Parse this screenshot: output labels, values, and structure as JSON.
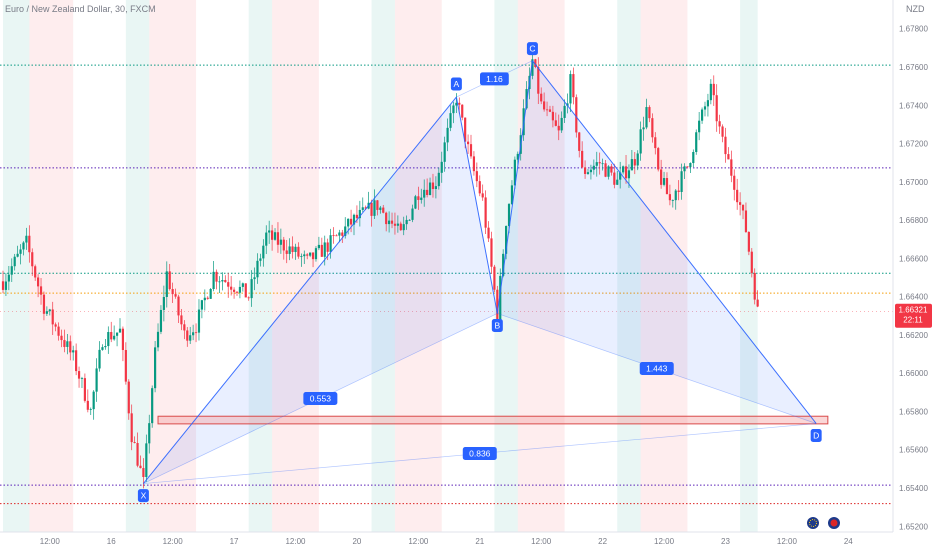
{
  "header": {
    "title": "Euro / New Zealand Dollar, 30, FXCM",
    "currency": "NZD"
  },
  "chart_data": {
    "type": "candlestick",
    "symbol": "EURNZD",
    "timeframe": "30",
    "source": "FXCM",
    "x_ticks": [
      "12:00",
      "16",
      "12:00",
      "17",
      "12:00",
      "20",
      "12:00",
      "21",
      "12:00",
      "22",
      "12:00",
      "23",
      "12:00",
      "24"
    ],
    "y_ticks": [
      "1.67800",
      "1.67600",
      "1.67400",
      "1.67200",
      "1.67000",
      "1.66800",
      "1.66600",
      "1.66400",
      "1.66200",
      "1.66000",
      "1.65800",
      "1.65600",
      "1.65400",
      "1.65200"
    ],
    "y_tick_values": [
      1.678,
      1.676,
      1.674,
      1.672,
      1.67,
      1.668,
      1.666,
      1.664,
      1.662,
      1.66,
      1.658,
      1.656,
      1.654,
      1.652
    ],
    "ylim": [
      1.6517,
      1.6795
    ],
    "x_range": [
      0,
      155
    ],
    "last_price": "1.66321",
    "last_price_value": 1.66321,
    "countdown": "22:11",
    "pattern": {
      "name": "bat",
      "points": [
        {
          "label": "X",
          "t": 24,
          "price": 1.65423
        },
        {
          "label": "A",
          "t": 77.5,
          "price": 1.67443
        },
        {
          "label": "B",
          "t": 84.5,
          "price": 1.66312
        },
        {
          "label": "C",
          "t": 90.5,
          "price": 1.67633
        },
        {
          "label": "D",
          "t": 139,
          "price": 1.65737
        }
      ],
      "ratios": [
        {
          "label": "0.553",
          "between": "X-B"
        },
        {
          "label": "1.16",
          "between": "A-C"
        },
        {
          "label": "1.443",
          "between": "B-D"
        },
        {
          "label": "0.836",
          "between": "X-D"
        }
      ]
    },
    "horizontal_levels": [
      {
        "price": 1.6761,
        "style": "dotted",
        "color": "#089981"
      },
      {
        "price": 1.67073,
        "style": "dotted",
        "color": "#5b21b6"
      },
      {
        "price": 1.66522,
        "style": "dotted",
        "color": "#089981"
      },
      {
        "price": 1.66418,
        "style": "dotted",
        "color": "#f59e0b"
      },
      {
        "price": 1.65415,
        "style": "dotted",
        "color": "#5b21b6"
      },
      {
        "price": 1.65318,
        "style": "dotted",
        "color": "#dc2626"
      }
    ],
    "zone": {
      "t_start": 26.5,
      "t_end": 141,
      "price_top": 1.65775,
      "price_bottom": 1.65735,
      "color": "#f4a6a6"
    },
    "session_bands": [
      {
        "t0": 0,
        "t1": 4.5,
        "color": "green"
      },
      {
        "t0": 4.5,
        "t1": 12,
        "color": "red"
      },
      {
        "t0": 21,
        "t1": 25,
        "color": "green"
      },
      {
        "t0": 25,
        "t1": 33,
        "color": "red"
      },
      {
        "t0": 42,
        "t1": 46,
        "color": "green"
      },
      {
        "t0": 46,
        "t1": 54,
        "color": "red"
      },
      {
        "t0": 63,
        "t1": 67,
        "color": "green"
      },
      {
        "t0": 67,
        "t1": 75,
        "color": "red"
      },
      {
        "t0": 84,
        "t1": 88,
        "color": "green"
      },
      {
        "t0": 88,
        "t1": 96,
        "color": "red"
      },
      {
        "t0": 105,
        "t1": 109,
        "color": "green"
      },
      {
        "t0": 109,
        "t1": 117,
        "color": "red"
      },
      {
        "t0": 126,
        "t1": 129,
        "color": "green"
      }
    ],
    "colors": {
      "up": "#089981",
      "down": "#f23645",
      "pattern": "#2962ff",
      "badge": "#2962ff",
      "price_tag": "#f23645"
    }
  }
}
